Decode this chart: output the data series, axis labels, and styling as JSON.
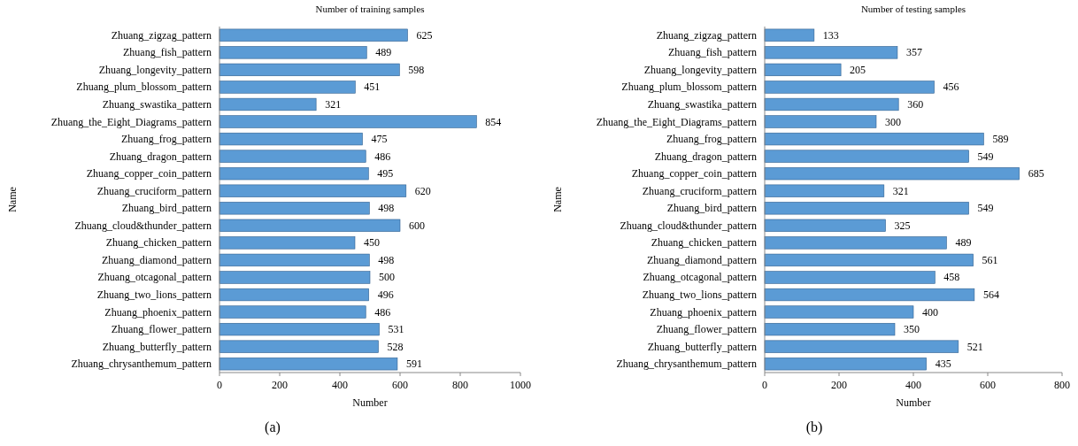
{
  "chart_data": [
    {
      "type": "bar",
      "orientation": "horizontal",
      "title": "Number of training samples",
      "xlabel": "Number",
      "ylabel": "Name",
      "color": "#5b9bd5",
      "data_labels": true,
      "xlim": [
        0,
        1000
      ],
      "xticks": [
        0,
        200,
        400,
        600,
        800,
        1000
      ],
      "annotations": [
        "(a)"
      ],
      "categories": [
        "Zhuang_zigzag_pattern",
        "Zhuang_fish_pattern",
        "Zhuang_longevity_pattern",
        "Zhuang_plum_blossom_pattern",
        "Zhuang_swastika_pattern",
        "Zhuang_the_Eight_Diagrams_pattern",
        "Zhuang_frog_pattern",
        "Zhuang_dragon_pattern",
        "Zhuang_copper_coin_pattern",
        "Zhuang_cruciform_pattern",
        "Zhuang_bird_pattern",
        "Zhuang_cloud&thunder_pattern",
        "Zhuang_chicken_pattern",
        "Zhuang_diamond_pattern",
        "Zhuang_otcagonal_pattern",
        "Zhuang_two_lions_pattern",
        "Zhuang_phoenix_pattern",
        "Zhuang_flower_pattern",
        "Zhuang_butterfly_pattern",
        "Zhuang_chrysanthemum_pattern"
      ],
      "values": [
        625,
        489,
        598,
        451,
        321,
        854,
        475,
        486,
        495,
        620,
        498,
        600,
        450,
        498,
        500,
        496,
        486,
        531,
        528,
        591
      ]
    },
    {
      "type": "bar",
      "orientation": "horizontal",
      "title": "Number of testing samples",
      "xlabel": "Number",
      "ylabel": "Name",
      "color": "#5b9bd5",
      "data_labels": true,
      "xlim": [
        0,
        800
      ],
      "xticks": [
        0,
        200,
        400,
        600,
        800
      ],
      "annotations": [
        "(b)"
      ],
      "categories": [
        "Zhuang_zigzag_pattern",
        "Zhuang_fish_pattern",
        "Zhuang_longevity_pattern",
        "Zhuang_plum_blossom_pattern",
        "Zhuang_swastika_pattern",
        "Zhuang_the_Eight_Diagrams_pattern",
        "Zhuang_frog_pattern",
        "Zhuang_dragon_pattern",
        "Zhuang_copper_coin_pattern",
        "Zhuang_cruciform_pattern",
        "Zhuang_bird_pattern",
        "Zhuang_cloud&thunder_pattern",
        "Zhuang_chicken_pattern",
        "Zhuang_diamond_pattern",
        "Zhuang_otcagonal_pattern",
        "Zhuang_two_lions_pattern",
        "Zhuang_phoenix_pattern",
        "Zhuang_flower_pattern",
        "Zhuang_butterfly_pattern",
        "Zhuang_chrysanthemum_pattern"
      ],
      "values": [
        133,
        357,
        205,
        456,
        360,
        300,
        589,
        549,
        685,
        321,
        549,
        325,
        489,
        561,
        458,
        564,
        400,
        350,
        521,
        435
      ]
    }
  ]
}
